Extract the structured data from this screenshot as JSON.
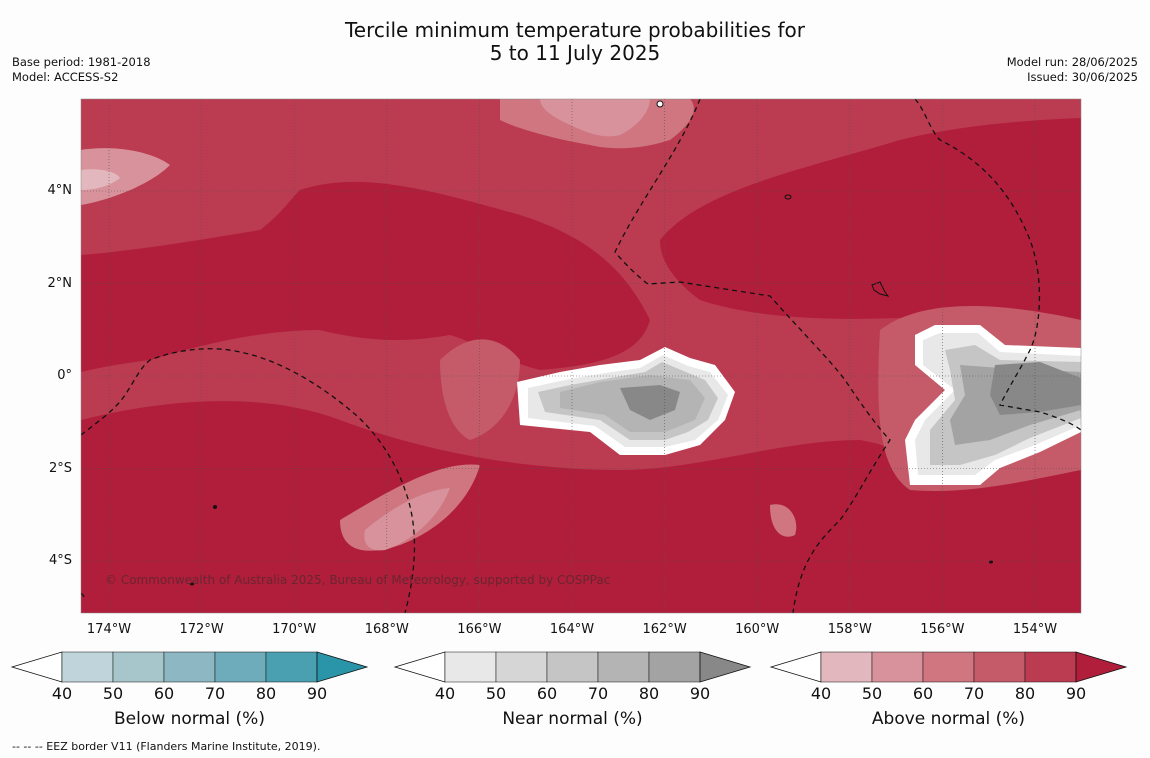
{
  "title_line1": "Tercile minimum temperature probabilities for",
  "title_line2": "5 to 11 July 2025",
  "base_period": "Base period: 1981-2018",
  "model": "Model: ACCESS-S2",
  "model_run": "Model run: 28/06/2025",
  "issued": "Issued: 30/06/2025",
  "copyright": "© Commonwealth of Australia 2025, Bureau of Meteorology, supported by COSPPac",
  "footnote": "--  --  -- EEZ border V11 (Flanders Marine Institute, 2019).",
  "lon_ticks": [
    "174°W",
    "172°W",
    "170°W",
    "168°W",
    "166°W",
    "164°W",
    "162°W",
    "160°W",
    "158°W",
    "156°W",
    "154°W"
  ],
  "lat_ticks": [
    "4°N",
    "2°N",
    "0°",
    "2°S",
    "4°S"
  ],
  "colorbars": [
    {
      "label": "Below normal (%)",
      "ticks": [
        "40",
        "50",
        "60",
        "70",
        "80",
        "90"
      ],
      "colors": [
        "#bfd5db",
        "#a7c6cc",
        "#8cb7c3",
        "#6eacbb",
        "#4a9fb0",
        "#2a94a8"
      ]
    },
    {
      "label": "Near normal (%)",
      "ticks": [
        "40",
        "50",
        "60",
        "70",
        "80",
        "90"
      ],
      "colors": [
        "#e8e8e8",
        "#d6d6d6",
        "#c5c5c5",
        "#b4b4b4",
        "#a3a3a3",
        "#888888"
      ]
    },
    {
      "label": "Above normal (%)",
      "ticks": [
        "40",
        "50",
        "60",
        "70",
        "80",
        "90"
      ],
      "colors": [
        "#e2b7bd",
        "#d8929b",
        "#cf7681",
        "#c55a68",
        "#bb3b50",
        "#b01e3b"
      ]
    }
  ]
}
